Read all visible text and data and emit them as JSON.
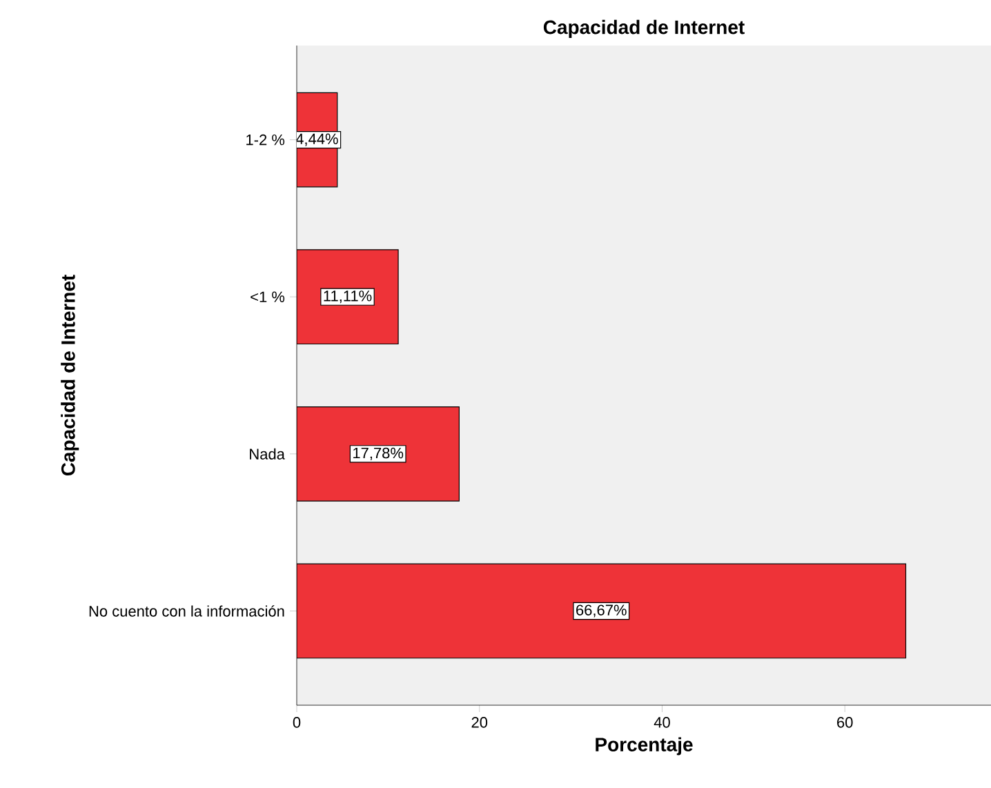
{
  "chart_data": {
    "type": "bar",
    "orientation": "horizontal",
    "title": "Capacidad de Internet",
    "xlabel": "Porcentaje",
    "ylabel": "Capacidad de Internet",
    "categories": [
      "1-2 %",
      "<1 %",
      "Nada",
      "No cuento con la información"
    ],
    "values": [
      4.44,
      11.11,
      17.78,
      66.67
    ],
    "value_labels": [
      "4,44%",
      "11,11%",
      "17,78%",
      "66,67%"
    ],
    "color": "#ee3338",
    "xlim": [
      0,
      76
    ],
    "xticks": [
      0,
      20,
      40,
      60
    ],
    "grid": false
  }
}
